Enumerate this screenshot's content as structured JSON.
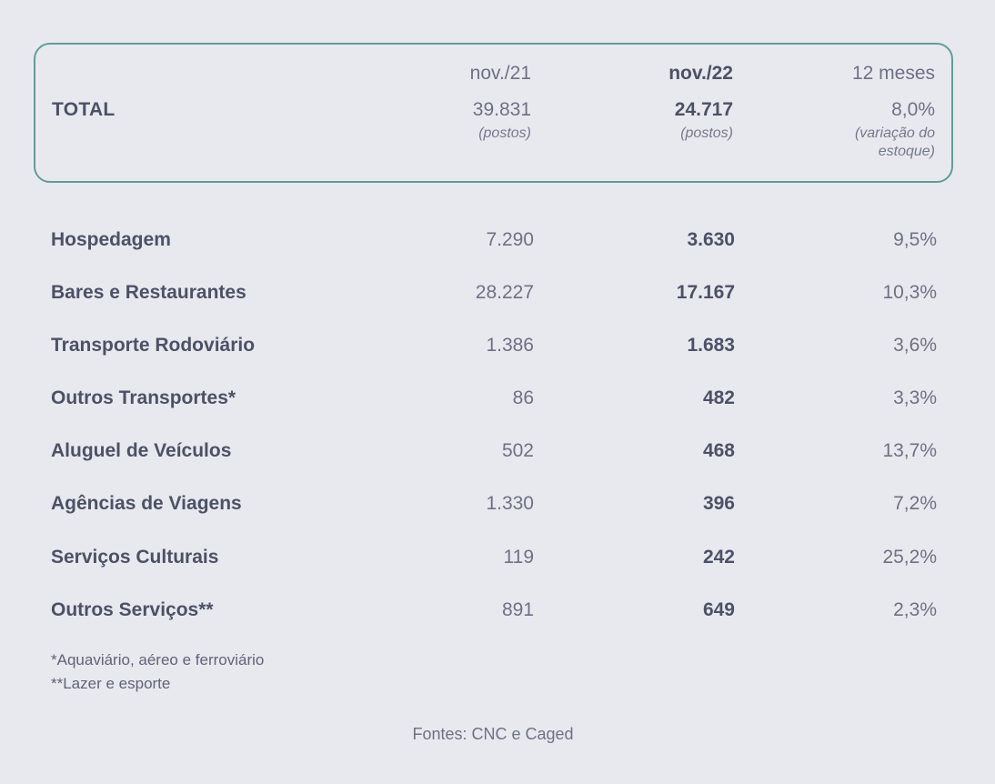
{
  "header": {
    "col_prev": "nov./21",
    "col_curr": "nov./22",
    "col_var": "12 meses"
  },
  "total": {
    "label": "TOTAL",
    "prev": "39.831",
    "prev_note": "(postos)",
    "curr": "24.717",
    "curr_note": "(postos)",
    "var": "8,0%",
    "var_note": "(variação do estoque)"
  },
  "rows": [
    {
      "label": "Hospedagem",
      "prev": "7.290",
      "curr": "3.630",
      "var": "9,5%"
    },
    {
      "label": "Bares e Restaurantes",
      "prev": "28.227",
      "curr": "17.167",
      "var": "10,3%"
    },
    {
      "label": "Transporte Rodoviário",
      "prev": "1.386",
      "curr": "1.683",
      "var": "3,6%"
    },
    {
      "label": "Outros Transportes*",
      "prev": "86",
      "curr": "482",
      "var": "3,3%"
    },
    {
      "label": "Aluguel de Veículos",
      "prev": "502",
      "curr": "468",
      "var": "13,7%"
    },
    {
      "label": "Agências de Viagens",
      "prev": "1.330",
      "curr": "396",
      "var": "7,2%"
    },
    {
      "label": "Serviços Culturais",
      "prev": "119",
      "curr": "242",
      "var": "25,2%"
    },
    {
      "label": "Outros Serviços**",
      "prev": "891",
      "curr": "649",
      "var": "2,3%"
    }
  ],
  "footnotes": [
    "*Aquaviário, aéreo e ferroviário",
    "**Lazer e esporte"
  ],
  "source": "Fontes: CNC e Caged"
}
